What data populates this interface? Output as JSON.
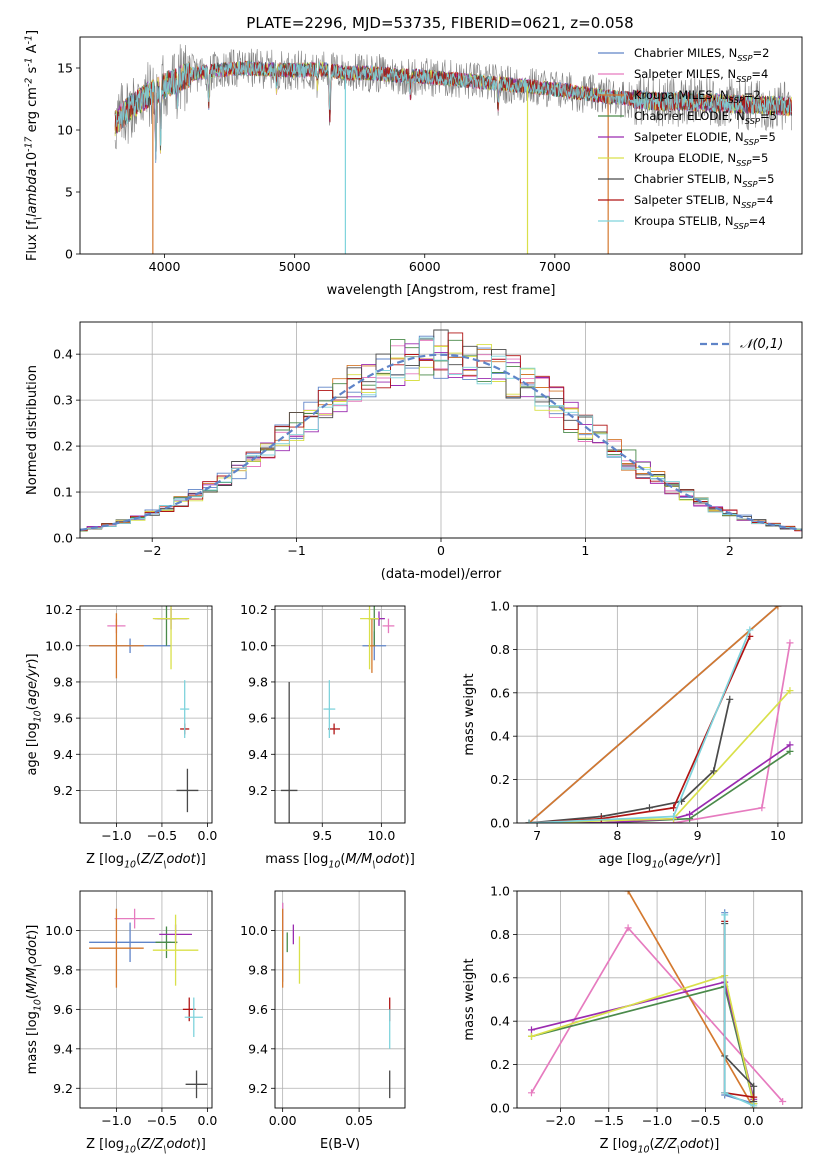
{
  "figure": {
    "title": "PLATE=2296, MJD=53735, FIBERID=0621, z=0.058"
  },
  "chart_data": [
    {
      "id": "spectrum",
      "type": "line",
      "title": "PLATE=2296, MJD=53735, FIBERID=0621, z=0.058",
      "xlabel": "wavelength [Angstrom, rest frame]",
      "ylabel": "Flux [f$_\\lambda$10$^{-17}$ erg cm$^{-2}$ s$^{-1}$ A$^{-1}$]",
      "xlim": [
        3350,
        8900
      ],
      "ylim": [
        0,
        17.5
      ],
      "xticks": [
        4000,
        5000,
        6000,
        7000,
        8000
      ],
      "yticks": [
        0,
        5,
        10,
        15
      ],
      "legend_position": "top-right",
      "data_color": "#808080",
      "continuum": {
        "x": [
          3620,
          3700,
          3800,
          3900,
          4000,
          4200,
          4400,
          4600,
          4800,
          5000,
          5200,
          5400,
          5600,
          5800,
          6000,
          6200,
          6400,
          6600,
          6800,
          7000,
          7200,
          7400,
          7600,
          7800,
          8000,
          8200,
          8400,
          8600,
          8800
        ],
        "y": [
          10.5,
          11.5,
          12.3,
          13.0,
          13.6,
          14.5,
          14.8,
          15.0,
          14.9,
          14.8,
          14.9,
          14.6,
          14.6,
          14.4,
          14.3,
          14.1,
          13.9,
          13.7,
          13.5,
          13.3,
          13.0,
          12.7,
          12.5,
          12.3,
          12.3,
          12.2,
          12.1,
          12.0,
          11.9
        ]
      },
      "series": [
        {
          "name": "Chabrier MILES, N$_{SSP}$=2",
          "color": "#5f84c8"
        },
        {
          "name": "Salpeter MILES, N$_{SSP}$=4",
          "color": "#e67bbf"
        },
        {
          "name": "Kroupa MILES, N$_{SSP}$=2",
          "color": "#d4792f"
        },
        {
          "name": "Chabrier ELODIE, N$_{SSP}$=5",
          "color": "#4a8a4a"
        },
        {
          "name": "Salpeter ELODIE, N$_{SSP}$=5",
          "color": "#9a2bb0"
        },
        {
          "name": "Kroupa ELODIE, N$_{SSP}$=5",
          "color": "#d9e04a"
        },
        {
          "name": "Chabrier STELIB, N$_{SSP}$=5",
          "color": "#4a4a4a"
        },
        {
          "name": "Salpeter STELIB, N$_{SSP}$=4",
          "color": "#b01414"
        },
        {
          "name": "Kroupa STELIB, N$_{SSP}$=4",
          "color": "#7fd3dc"
        }
      ]
    },
    {
      "id": "residuals",
      "type": "line",
      "xlabel": "(data-model)/error",
      "ylabel": "Normed distribution",
      "xlim": [
        -2.5,
        2.5
      ],
      "ylim": [
        0,
        0.47
      ],
      "xticks": [
        -2,
        -1,
        0,
        1,
        2
      ],
      "yticks": [
        0.0,
        0.1,
        0.2,
        0.3,
        0.4
      ],
      "grid": true,
      "legend_position": "top-right",
      "gaussian": {
        "name": "$\\mathcal{N}(0,1)$",
        "mean": 0,
        "sigma": 1,
        "color": "#5f84c8"
      },
      "bins": {
        "start": -2.55,
        "width": 0.1,
        "count": 51
      }
    },
    {
      "id": "age-vs-Z",
      "type": "scatter",
      "xlabel": "Z [log$_{10}$($Z/Z_\\odot$)]",
      "ylabel": "age  [log$_{10}$($age/yr$)]",
      "xlim": [
        -1.4,
        0.05
      ],
      "ylim": [
        9.02,
        10.22
      ],
      "xticks": [
        -1.0,
        -0.5,
        0.0
      ],
      "yticks": [
        9.2,
        9.4,
        9.6,
        9.8,
        10.0,
        10.2
      ],
      "grid": true,
      "points": [
        {
          "series": 0,
          "x": -0.85,
          "y": 10.0,
          "xerr": 0.45,
          "yerr": 0.04
        },
        {
          "series": 1,
          "x": -1.0,
          "y": 10.11,
          "xerr": 0.1,
          "yerr": 0.04
        },
        {
          "series": 2,
          "x": -1.0,
          "y": 10.0,
          "xerr": 0.3,
          "yerr": 0.18
        },
        {
          "series": 3,
          "x": -0.45,
          "y": 10.15,
          "xerr": 0.1,
          "yerr": 0.15
        },
        {
          "series": 4,
          "x": -0.4,
          "y": 10.15,
          "xerr": 0.18,
          "yerr": 0.06
        },
        {
          "series": 5,
          "x": -0.4,
          "y": 10.15,
          "xerr": 0.2,
          "yerr": 0.28
        },
        {
          "series": 6,
          "x": -0.22,
          "y": 9.2,
          "xerr": 0.12,
          "yerr": 0.12
        },
        {
          "series": 7,
          "x": -0.25,
          "y": 9.54,
          "xerr": 0.05,
          "yerr": 0.03
        },
        {
          "series": 8,
          "x": -0.25,
          "y": 9.65,
          "xerr": 0.05,
          "yerr": 0.16
        }
      ]
    },
    {
      "id": "age-vs-mass",
      "type": "scatter",
      "xlabel": "mass [log$_{10}$($M/M_\\odot$)]",
      "xlim": [
        9.1,
        10.2
      ],
      "ylim": [
        9.02,
        10.22
      ],
      "xticks": [
        9.5,
        10.0
      ],
      "yticks": [
        9.2,
        9.4,
        9.6,
        9.8,
        10.0,
        10.2
      ],
      "grid": true,
      "points": [
        {
          "series": 0,
          "x": 9.94,
          "y": 10.0,
          "xerr": 0.1,
          "yerr": 0.08
        },
        {
          "series": 1,
          "x": 10.06,
          "y": 10.11,
          "xerr": 0.05,
          "yerr": 0.04
        },
        {
          "series": 2,
          "x": 9.92,
          "y": 10.0,
          "xerr": 0.03,
          "yerr": 0.15
        },
        {
          "series": 3,
          "x": 9.94,
          "y": 10.15,
          "xerr": 0.05,
          "yerr": 0.15
        },
        {
          "series": 4,
          "x": 9.98,
          "y": 10.15,
          "xerr": 0.05,
          "yerr": 0.04
        },
        {
          "series": 5,
          "x": 9.9,
          "y": 10.15,
          "xerr": 0.08,
          "yerr": 0.28
        },
        {
          "series": 6,
          "x": 9.22,
          "y": 9.2,
          "xerr": 0.07,
          "yerr": 0.6
        },
        {
          "series": 7,
          "x": 9.6,
          "y": 9.54,
          "xerr": 0.05,
          "yerr": 0.03
        },
        {
          "series": 8,
          "x": 9.56,
          "y": 9.65,
          "xerr": 0.05,
          "yerr": 0.16
        }
      ]
    },
    {
      "id": "weight-vs-age",
      "type": "line",
      "xlabel": "age  [log$_{10}$($age/yr$)]",
      "ylabel": "mass weight",
      "xlim": [
        6.75,
        10.3
      ],
      "ylim": [
        0,
        1.0
      ],
      "xticks": [
        7,
        8,
        9,
        10
      ],
      "yticks": [
        0.0,
        0.2,
        0.4,
        0.6,
        0.8,
        1.0
      ],
      "grid": true,
      "series": [
        {
          "series": 0,
          "x": [
            6.9,
            10.0
          ],
          "y": [
            0.0,
            1.0
          ]
        },
        {
          "series": 1,
          "x": [
            6.9,
            8.7,
            9.8,
            10.15
          ],
          "y": [
            0.0,
            0.0,
            0.07,
            0.83
          ]
        },
        {
          "series": 2,
          "x": [
            6.9,
            10.0
          ],
          "y": [
            0.0,
            1.0
          ]
        },
        {
          "series": 3,
          "x": [
            6.9,
            7.8,
            8.9,
            10.15
          ],
          "y": [
            0.0,
            0.0,
            0.02,
            0.33
          ]
        },
        {
          "series": 4,
          "x": [
            6.9,
            7.8,
            8.7,
            8.9,
            10.15
          ],
          "y": [
            0.0,
            0.0,
            0.02,
            0.04,
            0.36
          ]
        },
        {
          "series": 5,
          "x": [
            6.9,
            8.7,
            10.15
          ],
          "y": [
            0.0,
            0.02,
            0.61
          ]
        },
        {
          "series": 6,
          "x": [
            6.9,
            7.8,
            8.4,
            8.8,
            9.2,
            9.4
          ],
          "y": [
            0.0,
            0.03,
            0.07,
            0.1,
            0.24,
            0.57
          ]
        },
        {
          "series": 7,
          "x": [
            6.9,
            7.8,
            8.7,
            9.65
          ],
          "y": [
            0.0,
            0.02,
            0.07,
            0.86
          ]
        },
        {
          "series": 8,
          "x": [
            6.9,
            8.7,
            9.65
          ],
          "y": [
            0.0,
            0.03,
            0.89
          ]
        }
      ]
    },
    {
      "id": "mass-vs-Z",
      "type": "scatter",
      "xlabel": "Z [log$_{10}$($Z/Z_\\odot$)]",
      "ylabel": "mass [log$_{10}$($M/M_\\odot$)]",
      "xlim": [
        -1.4,
        0.05
      ],
      "ylim": [
        9.1,
        10.2
      ],
      "xticks": [
        -1.0,
        -0.5,
        0.0
      ],
      "yticks": [
        9.2,
        9.4,
        9.6,
        9.8,
        10.0
      ],
      "grid": true,
      "points": [
        {
          "series": 0,
          "x": -0.85,
          "y": 9.94,
          "xerr": 0.45,
          "yerr": 0.1
        },
        {
          "series": 1,
          "x": -0.8,
          "y": 10.06,
          "xerr": 0.22,
          "yerr": 0.05
        },
        {
          "series": 2,
          "x": -1.0,
          "y": 9.91,
          "xerr": 0.3,
          "yerr": 0.2
        },
        {
          "series": 3,
          "x": -0.45,
          "y": 9.94,
          "xerr": 0.12,
          "yerr": 0.08
        },
        {
          "series": 4,
          "x": -0.35,
          "y": 9.98,
          "xerr": 0.18,
          "yerr": 0.05
        },
        {
          "series": 5,
          "x": -0.35,
          "y": 9.9,
          "xerr": 0.25,
          "yerr": 0.18
        },
        {
          "series": 6,
          "x": -0.12,
          "y": 9.22,
          "xerr": 0.12,
          "yerr": 0.07
        },
        {
          "series": 7,
          "x": -0.2,
          "y": 9.6,
          "xerr": 0.07,
          "yerr": 0.06
        },
        {
          "series": 8,
          "x": -0.15,
          "y": 9.56,
          "xerr": 0.1,
          "yerr": 0.1
        }
      ]
    },
    {
      "id": "mass-vs-EBV",
      "type": "scatter",
      "xlabel": "E(B-V)",
      "xlim": [
        -0.005,
        0.08
      ],
      "ylim": [
        9.1,
        10.2
      ],
      "xticks": [
        0.0,
        0.05
      ],
      "yticks": [
        9.2,
        9.4,
        9.6,
        9.8,
        10.0
      ],
      "grid": true,
      "points": [
        {
          "series": 0,
          "x": 0.0,
          "y": 9.94,
          "yerr": 0.2
        },
        {
          "series": 1,
          "x": 0.0,
          "y": 10.06,
          "yerr": 0.08
        },
        {
          "series": 2,
          "x": 0.0,
          "y": 9.91,
          "yerr": 0.2
        },
        {
          "series": 3,
          "x": 0.003,
          "y": 9.94,
          "yerr": 0.05
        },
        {
          "series": 4,
          "x": 0.007,
          "y": 9.98,
          "yerr": 0.05
        },
        {
          "series": 5,
          "x": 0.011,
          "y": 9.85,
          "yerr": 0.12
        },
        {
          "series": 6,
          "x": 0.07,
          "y": 9.22,
          "yerr": 0.07
        },
        {
          "series": 7,
          "x": 0.07,
          "y": 9.6,
          "yerr": 0.06
        },
        {
          "series": 8,
          "x": 0.07,
          "y": 9.5,
          "yerr": 0.1
        }
      ]
    },
    {
      "id": "weight-vs-Z",
      "type": "line",
      "xlabel": "Z [log$_{10}$($Z/Z_\\odot$)]",
      "ylabel": "mass weight",
      "xlim": [
        -2.45,
        0.5
      ],
      "ylim": [
        0,
        1.0
      ],
      "xticks": [
        -2.0,
        -1.5,
        -1.0,
        -0.5,
        0.0
      ],
      "yticks": [
        0.0,
        0.2,
        0.4,
        0.6,
        0.8,
        1.0
      ],
      "grid": true,
      "series": [
        {
          "series": 0,
          "x": [
            -0.3,
            -0.3,
            0.0
          ],
          "y": [
            0.9,
            0.06,
            0.02
          ]
        },
        {
          "series": 1,
          "x": [
            -2.3,
            -1.3,
            0.3
          ],
          "y": [
            0.07,
            0.83,
            0.03
          ]
        },
        {
          "series": 2,
          "x": [
            -1.3,
            0.0
          ],
          "y": [
            1.0,
            0.0
          ]
        },
        {
          "series": 3,
          "x": [
            -2.3,
            -0.3,
            0.0
          ],
          "y": [
            0.33,
            0.56,
            0.02
          ]
        },
        {
          "series": 4,
          "x": [
            -2.3,
            -0.3,
            0.0
          ],
          "y": [
            0.36,
            0.58,
            0.04
          ]
        },
        {
          "series": 5,
          "x": [
            -2.3,
            -0.3,
            0.0
          ],
          "y": [
            0.33,
            0.61,
            0.02
          ]
        },
        {
          "series": 6,
          "x": [
            -0.3,
            -0.3,
            0.0,
            0.0
          ],
          "y": [
            0.85,
            0.24,
            0.1,
            0.03
          ]
        },
        {
          "series": 7,
          "x": [
            -0.3,
            -0.3,
            0.0
          ],
          "y": [
            0.86,
            0.07,
            0.05
          ]
        },
        {
          "series": 8,
          "x": [
            -0.3,
            -0.3,
            0.0
          ],
          "y": [
            0.89,
            0.07,
            0.01
          ]
        }
      ]
    }
  ]
}
